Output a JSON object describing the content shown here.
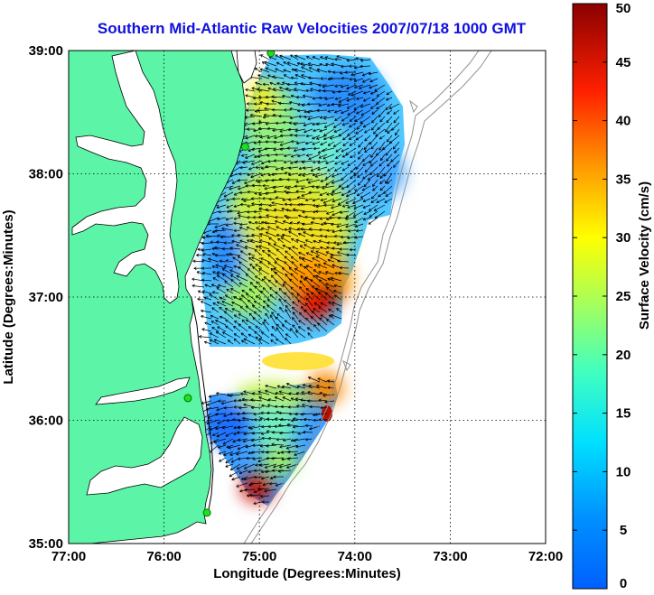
{
  "title": "Southern Mid-Atlantic Raw Velocities 2007/07/18 1000 GMT",
  "map": {
    "xlabel": "Longitude (Degrees:Minutes)",
    "ylabel": "Latitude (Degrees:Minutes)",
    "x_ticks": [
      "77:00",
      "76:00",
      "75:00",
      "74:00",
      "73:00",
      "72:00"
    ],
    "y_ticks": [
      "39:00",
      "38:00",
      "37:00",
      "36:00",
      "35:00"
    ],
    "lon_range": [
      -77,
      -72
    ],
    "lat_range": [
      35,
      39
    ],
    "grid": "dotted",
    "land_color": "#5cf5a8",
    "coast_color": "#000000",
    "bathymetry_color": "#909090",
    "station_color": "#22dd22",
    "stations": [
      {
        "lon": -74.88,
        "lat": 38.98
      },
      {
        "lon": -75.15,
        "lat": 38.22
      },
      {
        "lon": -75.75,
        "lat": 36.18
      },
      {
        "lon": -75.55,
        "lat": 35.25
      }
    ]
  },
  "colorbar": {
    "label": "Surface Velocity (cm/s)",
    "ticks": [
      "0",
      "5",
      "10",
      "15",
      "20",
      "25",
      "30",
      "35",
      "40",
      "45",
      "50"
    ],
    "min": 0,
    "max": 50,
    "colormap": "jet"
  },
  "chart_data": {
    "type": "heatmap",
    "title": "Southern Mid-Atlantic Raw Velocities 2007/07/18 1000 GMT",
    "xlabel": "Longitude (Degrees:Minutes)",
    "ylabel": "Latitude (Degrees:Minutes)",
    "colorbar_label": "Surface Velocity (cm/s)",
    "xlim": [
      -77,
      -72
    ],
    "ylim": [
      35,
      39
    ],
    "clim": [
      0,
      50
    ],
    "regions": [
      {
        "lon": -74.55,
        "lat": 36.92,
        "speed": 45
      },
      {
        "lon": -74.35,
        "lat": 36.98,
        "speed": 40
      },
      {
        "lon": -74.7,
        "lat": 37.3,
        "speed": 30
      },
      {
        "lon": -74.9,
        "lat": 37.55,
        "speed": 27
      },
      {
        "lon": -75.1,
        "lat": 37.8,
        "speed": 24
      },
      {
        "lon": -75.3,
        "lat": 37.2,
        "speed": 12
      },
      {
        "lon": -74.4,
        "lat": 38.6,
        "speed": 10
      },
      {
        "lon": -74.0,
        "lat": 38.05,
        "speed": 8
      },
      {
        "lon": -74.2,
        "lat": 38.8,
        "speed": 12
      },
      {
        "lon": -74.85,
        "lat": 38.55,
        "speed": 22
      },
      {
        "lon": -74.9,
        "lat": 36.6,
        "speed": 27
      },
      {
        "lon": -74.2,
        "lat": 36.55,
        "speed": 40
      },
      {
        "lon": -75.3,
        "lat": 36.0,
        "speed": 8
      },
      {
        "lon": -74.9,
        "lat": 35.85,
        "speed": 15
      },
      {
        "lon": -74.75,
        "lat": 35.55,
        "speed": 22
      },
      {
        "lon": -75.05,
        "lat": 35.45,
        "speed": 45
      }
    ]
  }
}
